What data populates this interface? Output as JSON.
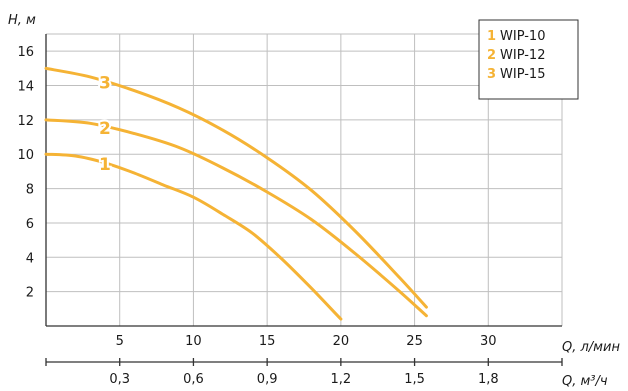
{
  "chart_data": {
    "type": "line",
    "ylabel": "H, м",
    "xlabel": "Q, л/мин",
    "xlabel2": "Q, м³/ч",
    "xlim": [
      0,
      35
    ],
    "ylim": [
      0,
      17
    ],
    "x_ticks": [
      "5",
      "10",
      "15",
      "20",
      "25",
      "30"
    ],
    "x_tick_values": [
      5,
      10,
      15,
      20,
      25,
      30
    ],
    "x2_ticks": [
      "0,3",
      "0,6",
      "0,9",
      "1,2",
      "1,5",
      "1,8"
    ],
    "x2_tick_values": [
      0.3,
      0.6,
      0.9,
      1.2,
      1.5,
      1.8
    ],
    "y_ticks": [
      "2",
      "4",
      "6",
      "8",
      "10",
      "12",
      "14",
      "16"
    ],
    "y_tick_values": [
      2,
      4,
      6,
      8,
      10,
      12,
      14,
      16
    ],
    "grid": true,
    "legend_position": "top-right",
    "colors": {
      "curve": "#f5b335",
      "grid": "#bfbfbf",
      "axis": "#333333",
      "text": "#1a1a1a"
    },
    "series": [
      {
        "name": "WIP-10",
        "label": "1",
        "x": [
          0,
          2,
          4,
          6,
          8,
          10,
          12,
          14,
          16,
          18,
          20
        ],
        "y": [
          10,
          9.9,
          9.5,
          8.9,
          8.2,
          7.5,
          6.5,
          5.4,
          3.9,
          2.2,
          0.4
        ]
      },
      {
        "name": "WIP-12",
        "label": "2",
        "x": [
          0,
          3,
          6,
          9,
          12,
          15,
          18,
          21,
          24,
          25.8
        ],
        "y": [
          12,
          11.8,
          11.2,
          10.4,
          9.2,
          7.8,
          6.2,
          4.2,
          2.0,
          0.6
        ]
      },
      {
        "name": "WIP-15",
        "label": "3",
        "x": [
          0,
          3,
          6,
          9,
          12,
          15,
          18,
          21,
          24,
          25.8
        ],
        "y": [
          15,
          14.5,
          13.7,
          12.7,
          11.4,
          9.8,
          7.9,
          5.5,
          2.8,
          1.1
        ]
      }
    ]
  }
}
